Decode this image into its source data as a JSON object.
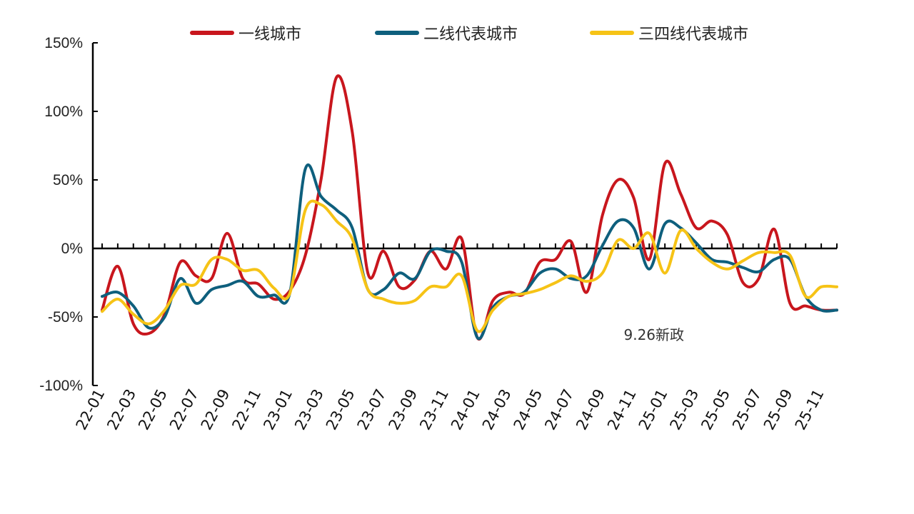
{
  "chart_data": {
    "type": "line",
    "title": "",
    "xlabel": "",
    "ylabel": "",
    "ylim": [
      -100,
      150
    ],
    "yticks": [
      -100,
      -50,
      0,
      50,
      100,
      150
    ],
    "ytick_labels": [
      "-100%",
      "-50%",
      "0%",
      "50%",
      "100%",
      "150%"
    ],
    "x": [
      "22-01",
      "22-02",
      "22-03",
      "22-04",
      "22-05",
      "22-06",
      "22-07",
      "22-08",
      "22-09",
      "22-10",
      "22-11",
      "22-12",
      "23-01",
      "23-02",
      "23-03",
      "23-04",
      "23-05",
      "23-06",
      "23-07",
      "23-08",
      "23-09",
      "23-10",
      "23-11",
      "23-12",
      "24-01",
      "24-02",
      "24-03",
      "24-04",
      "24-05",
      "24-06",
      "24-07",
      "24-08",
      "24-09",
      "24-10",
      "24-11",
      "24-12",
      "25-01",
      "25-02",
      "25-03",
      "25-04",
      "25-05",
      "25-06",
      "25-07",
      "25-08",
      "25-09",
      "25-10",
      "25-11",
      "25-12"
    ],
    "xtick_labels": [
      "22-01",
      "22-03",
      "22-05",
      "22-07",
      "22-09",
      "22-11",
      "23-01",
      "23-03",
      "23-05",
      "23-07",
      "23-09",
      "23-11",
      "24-01",
      "24-03",
      "24-05",
      "24-07",
      "24-09",
      "24-11",
      "25-01",
      "25-03",
      "25-05",
      "25-07",
      "25-09",
      "25-11"
    ],
    "grid": false,
    "legend_position": "top",
    "series": [
      {
        "name": "一线城市",
        "color": "#c8161d",
        "values": [
          -45,
          -13,
          -55,
          -62,
          -48,
          -10,
          -20,
          -22,
          11,
          -22,
          -26,
          -37,
          -31,
          -5,
          50,
          125,
          85,
          -18,
          -2,
          -28,
          -23,
          -2,
          -15,
          7,
          -65,
          -38,
          -32,
          -33,
          -10,
          -8,
          5,
          -32,
          24,
          50,
          37,
          -8,
          62,
          40,
          15,
          20,
          10,
          -25,
          -22,
          14,
          -40,
          -42,
          -45,
          -45
        ]
      },
      {
        "name": "二线代表城市",
        "color": "#0e5f7d",
        "values": [
          -35,
          -32,
          -42,
          -58,
          -50,
          -22,
          -40,
          -30,
          -27,
          -24,
          -35,
          -34,
          -33,
          58,
          38,
          28,
          15,
          -30,
          -30,
          -18,
          -22,
          -2,
          -2,
          -10,
          -65,
          -43,
          -35,
          -32,
          -18,
          -15,
          -22,
          -20,
          2,
          20,
          15,
          -15,
          18,
          15,
          4,
          -8,
          -10,
          -14,
          -17,
          -8,
          -8,
          -35,
          -45,
          -45
        ]
      },
      {
        "name": "三四线代表城市",
        "color": "#f6c316",
        "values": [
          -46,
          -37,
          -48,
          -55,
          -45,
          -27,
          -26,
          -8,
          -8,
          -16,
          -16,
          -29,
          -33,
          28,
          32,
          20,
          7,
          -30,
          -37,
          -40,
          -38,
          -28,
          -28,
          -20,
          -60,
          -45,
          -35,
          -33,
          -30,
          -25,
          -20,
          -24,
          -18,
          6,
          0,
          11,
          -18,
          13,
          0,
          -10,
          -15,
          -9,
          -3,
          -3,
          -5,
          -35,
          -28,
          -28
        ]
      }
    ],
    "annotations": [
      {
        "text": "9.26新政",
        "x": "24-10",
        "y": -63
      }
    ]
  }
}
